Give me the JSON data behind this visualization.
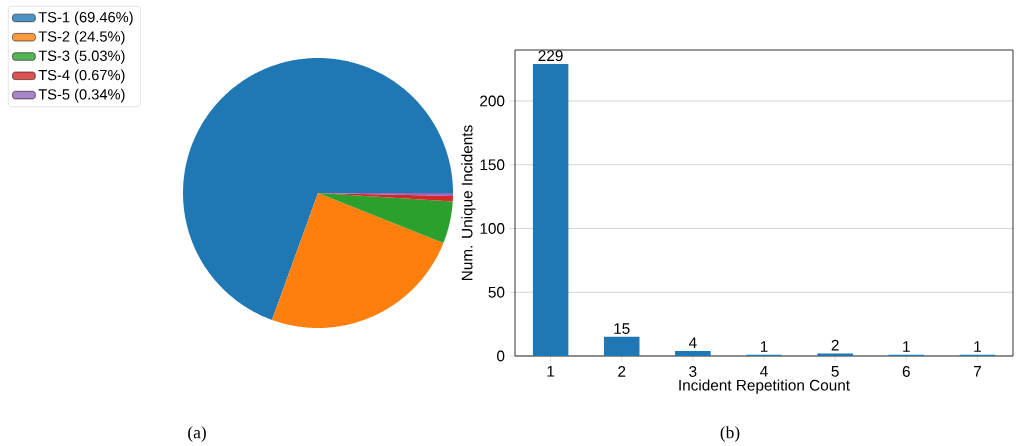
{
  "chart_data": [
    {
      "type": "pie",
      "categories": [
        "TS-1 (69.46%)",
        "TS-2 (24.5%)",
        "TS-3 (5.03%)",
        "TS-4 (0.67%)",
        "TS-5 (0.34%)"
      ],
      "values": [
        69.46,
        24.5,
        5.03,
        0.67,
        0.34
      ],
      "colors": [
        "#1f77b4",
        "#ff7f0e",
        "#2ca02c",
        "#d62728",
        "#9467bd"
      ],
      "legend": "top left",
      "annotations": [
        "(a)"
      ]
    },
    {
      "type": "bar",
      "categories": [
        "1",
        "2",
        "3",
        "4",
        "5",
        "6",
        "7"
      ],
      "values": [
        229,
        15,
        4,
        1,
        2,
        1,
        1
      ],
      "color": "#1f77b4",
      "ylim": [
        0,
        240
      ],
      "yticks": [
        0,
        50,
        100,
        150,
        200
      ],
      "grid": "y",
      "data_labels": true,
      "xlabel": "Incident Repetition Count",
      "ylabel": "Num. Unique Incidents",
      "annotations": [
        "(b)"
      ]
    }
  ]
}
